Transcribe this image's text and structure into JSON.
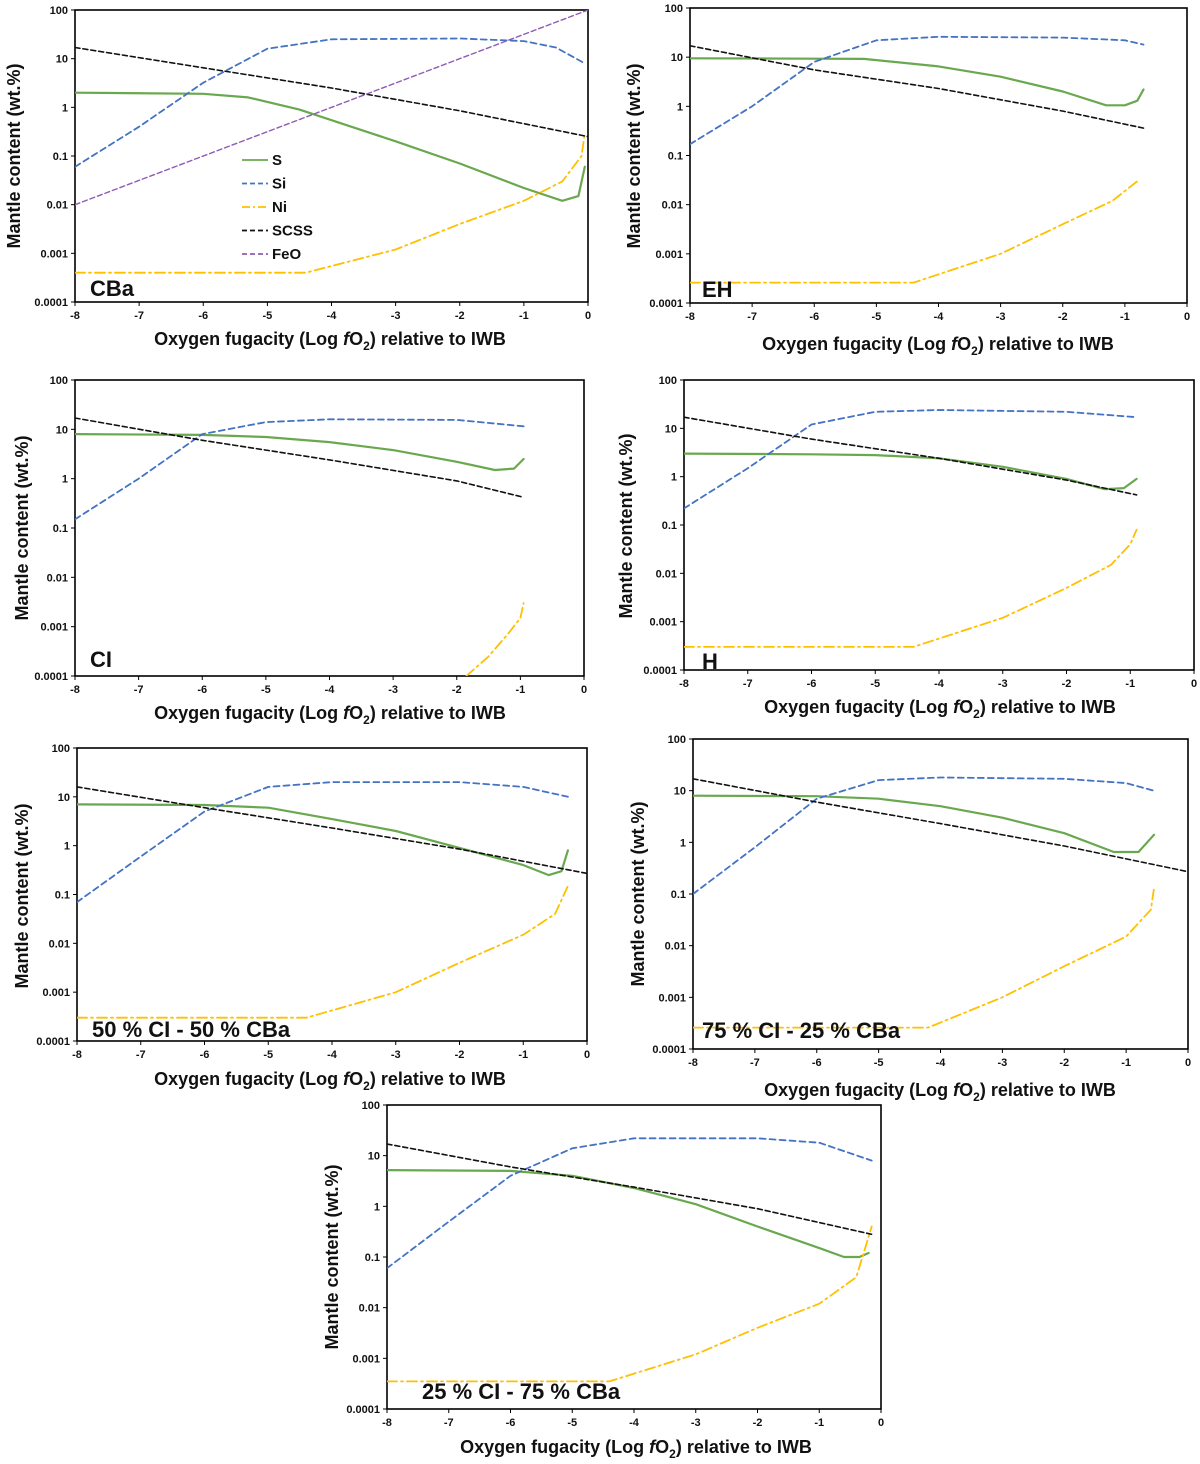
{
  "figure": {
    "axis_x_label_prefix": "Oxygen fugacity (Log ",
    "axis_x_label_f": "f",
    "axis_x_label_o": "O",
    "axis_x_label_sub": "2",
    "axis_x_label_suffix": ") relative to IWB",
    "axis_y_label": "Mantle content (wt.%)",
    "y_tick_labels": [
      "0.0001",
      "0.001",
      "0.01",
      "0.1",
      "1",
      "10",
      "100"
    ],
    "x_tick_labels": [
      "-8",
      "-7",
      "-6",
      "-5",
      "-4",
      "-3",
      "-2",
      "-1",
      "0"
    ]
  },
  "legend": [
    {
      "name": "S",
      "color": "#6aa84f",
      "dash": "solid"
    },
    {
      "name": "Si",
      "color": "#4472c4",
      "dash": "dash"
    },
    {
      "name": "Ni",
      "color": "#ffc000",
      "dash": "dashdot"
    },
    {
      "name": "SCSS",
      "color": "#111111",
      "dash": "dash"
    },
    {
      "name": "FeO",
      "color": "#8e5bb5",
      "dash": "dash"
    }
  ],
  "chart_data": [
    {
      "type": "line",
      "title": "CBa",
      "xlabel": "Oxygen fugacity (Log fO2) relative to IWB",
      "ylabel": "Mantle content (wt.%)",
      "xlim": [
        -8,
        0
      ],
      "ylim": [
        0.0001,
        100
      ],
      "yscale": "log",
      "series": [
        {
          "name": "S",
          "points": [
            [
              -8,
              2
            ],
            [
              -6,
              1.9
            ],
            [
              -5.3,
              1.6
            ],
            [
              -4.5,
              0.9
            ],
            [
              -3,
              0.2
            ],
            [
              -2,
              0.07
            ],
            [
              -1,
              0.022
            ],
            [
              -0.4,
              0.012
            ],
            [
              -0.15,
              0.015
            ],
            [
              -0.05,
              0.06
            ]
          ]
        },
        {
          "name": "Si",
          "points": [
            [
              -8,
              0.06
            ],
            [
              -7,
              0.4
            ],
            [
              -6,
              3.2
            ],
            [
              -5,
              16
            ],
            [
              -4,
              25
            ],
            [
              -2,
              26
            ],
            [
              -1,
              23
            ],
            [
              -0.5,
              17
            ],
            [
              -0.05,
              8
            ]
          ]
        },
        {
          "name": "Ni",
          "points": [
            [
              -8,
              0.0004
            ],
            [
              -4.4,
              0.0004
            ],
            [
              -3,
              0.0012
            ],
            [
              -2,
              0.004
            ],
            [
              -1,
              0.012
            ],
            [
              -0.4,
              0.03
            ],
            [
              -0.1,
              0.1
            ],
            [
              -0.05,
              0.3
            ]
          ]
        },
        {
          "name": "SCSS",
          "points": [
            [
              -8,
              17
            ],
            [
              -6,
              6.5
            ],
            [
              -4,
              2.5
            ],
            [
              -2,
              0.85
            ],
            [
              0,
              0.25
            ]
          ]
        },
        {
          "name": "FeO",
          "points": [
            [
              -8,
              0.01
            ],
            [
              0,
              100
            ]
          ]
        }
      ]
    },
    {
      "type": "line",
      "title": "EH",
      "xlabel": "Oxygen fugacity (Log fO2) relative to IWB",
      "ylabel": "Mantle content (wt.%)",
      "xlim": [
        -8,
        0
      ],
      "ylim": [
        0.0001,
        100
      ],
      "yscale": "log",
      "series": [
        {
          "name": "S",
          "points": [
            [
              -8,
              9.5
            ],
            [
              -6,
              9.3
            ],
            [
              -5.2,
              9.2
            ],
            [
              -4,
              6.5
            ],
            [
              -3,
              4
            ],
            [
              -2,
              2
            ],
            [
              -1.3,
              1.05
            ],
            [
              -1,
              1.05
            ],
            [
              -0.8,
              1.3
            ],
            [
              -0.7,
              2.2
            ]
          ]
        },
        {
          "name": "Si",
          "points": [
            [
              -8,
              0.17
            ],
            [
              -7,
              1
            ],
            [
              -6,
              8
            ],
            [
              -5,
              22
            ],
            [
              -4,
              26
            ],
            [
              -2,
              25
            ],
            [
              -1,
              22
            ],
            [
              -0.7,
              18
            ]
          ]
        },
        {
          "name": "Ni",
          "points": [
            [
              -8,
              0.00026
            ],
            [
              -4.4,
              0.00026
            ],
            [
              -3,
              0.001
            ],
            [
              -2,
              0.004
            ],
            [
              -1.2,
              0.012
            ],
            [
              -0.8,
              0.03
            ]
          ]
        },
        {
          "name": "SCSS",
          "points": [
            [
              -8,
              17
            ],
            [
              -6,
              5.5
            ],
            [
              -4,
              2.3
            ],
            [
              -2,
              0.8
            ],
            [
              -0.7,
              0.36
            ]
          ]
        }
      ]
    },
    {
      "type": "line",
      "title": "CI",
      "xlabel": "Oxygen fugacity (Log fO2) relative to IWB",
      "ylabel": "Mantle content (wt.%)",
      "xlim": [
        -8,
        0
      ],
      "ylim": [
        0.0001,
        100
      ],
      "yscale": "log",
      "series": [
        {
          "name": "S",
          "points": [
            [
              -8,
              8
            ],
            [
              -6,
              7.7
            ],
            [
              -5,
              7
            ],
            [
              -4,
              5.5
            ],
            [
              -3,
              3.8
            ],
            [
              -2,
              2.2
            ],
            [
              -1.4,
              1.5
            ],
            [
              -1.1,
              1.6
            ],
            [
              -0.95,
              2.5
            ]
          ]
        },
        {
          "name": "Si",
          "points": [
            [
              -8,
              0.15
            ],
            [
              -7,
              1
            ],
            [
              -6,
              8
            ],
            [
              -5,
              14
            ],
            [
              -4,
              16
            ],
            [
              -2,
              15.5
            ],
            [
              -0.95,
              11.5
            ]
          ]
        },
        {
          "name": "Ni",
          "points": [
            [
              -1.85,
              0.0001
            ],
            [
              -1.5,
              0.00025
            ],
            [
              -1.2,
              0.0007
            ],
            [
              -1,
              0.0015
            ],
            [
              -0.95,
              0.003
            ]
          ]
        },
        {
          "name": "SCSS",
          "points": [
            [
              -8,
              17
            ],
            [
              -6,
              6
            ],
            [
              -4,
              2.4
            ],
            [
              -2,
              0.9
            ],
            [
              -0.95,
              0.42
            ]
          ]
        }
      ]
    },
    {
      "type": "line",
      "title": "H",
      "xlabel": "Oxygen fugacity (Log fO2) relative to IWB",
      "ylabel": "Mantle content (wt.%)",
      "xlim": [
        -8,
        0
      ],
      "ylim": [
        0.0001,
        100
      ],
      "yscale": "log",
      "series": [
        {
          "name": "S",
          "points": [
            [
              -8,
              3
            ],
            [
              -6,
              2.9
            ],
            [
              -5,
              2.8
            ],
            [
              -4,
              2.4
            ],
            [
              -3,
              1.6
            ],
            [
              -2,
              0.9
            ],
            [
              -1.4,
              0.55
            ],
            [
              -1.1,
              0.58
            ],
            [
              -0.9,
              0.9
            ]
          ]
        },
        {
          "name": "Si",
          "points": [
            [
              -8,
              0.22
            ],
            [
              -7,
              1.5
            ],
            [
              -6,
              12
            ],
            [
              -5,
              22
            ],
            [
              -4,
              24
            ],
            [
              -2,
              22
            ],
            [
              -0.9,
              17
            ]
          ]
        },
        {
          "name": "Ni",
          "points": [
            [
              -8,
              0.0003
            ],
            [
              -4.4,
              0.0003
            ],
            [
              -3,
              0.0012
            ],
            [
              -2,
              0.005
            ],
            [
              -1.3,
              0.015
            ],
            [
              -1,
              0.04
            ],
            [
              -0.9,
              0.08
            ]
          ]
        },
        {
          "name": "SCSS",
          "points": [
            [
              -8,
              17
            ],
            [
              -6,
              6
            ],
            [
              -4,
              2.4
            ],
            [
              -2,
              0.85
            ],
            [
              -0.9,
              0.42
            ]
          ]
        }
      ]
    },
    {
      "type": "line",
      "title": "50 % CI - 50 % CBa",
      "xlabel": "Oxygen fugacity (Log fO2) relative to IWB",
      "ylabel": "Mantle content (wt.%)",
      "xlim": [
        -8,
        0
      ],
      "ylim": [
        0.0001,
        100
      ],
      "yscale": "log",
      "series": [
        {
          "name": "S",
          "points": [
            [
              -8,
              7
            ],
            [
              -6,
              6.8
            ],
            [
              -5,
              6
            ],
            [
              -4,
              3.5
            ],
            [
              -3,
              2
            ],
            [
              -2,
              0.9
            ],
            [
              -1,
              0.4
            ],
            [
              -0.6,
              0.25
            ],
            [
              -0.4,
              0.3
            ],
            [
              -0.3,
              0.8
            ]
          ]
        },
        {
          "name": "Si",
          "points": [
            [
              -8,
              0.07
            ],
            [
              -7,
              0.6
            ],
            [
              -6,
              5
            ],
            [
              -5,
              16
            ],
            [
              -4,
              20
            ],
            [
              -2,
              20
            ],
            [
              -1,
              16
            ],
            [
              -0.3,
              10
            ]
          ]
        },
        {
          "name": "Ni",
          "points": [
            [
              -8,
              0.0003
            ],
            [
              -4.4,
              0.0003
            ],
            [
              -3,
              0.001
            ],
            [
              -2,
              0.004
            ],
            [
              -1,
              0.015
            ],
            [
              -0.5,
              0.04
            ],
            [
              -0.3,
              0.15
            ]
          ]
        },
        {
          "name": "SCSS",
          "points": [
            [
              -8,
              16
            ],
            [
              -6,
              6
            ],
            [
              -4,
              2.3
            ],
            [
              -2,
              0.85
            ],
            [
              0,
              0.27
            ]
          ]
        }
      ]
    },
    {
      "type": "line",
      "title": "75 % CI - 25 % CBa",
      "xlabel": "Oxygen fugacity (Log fO2) relative to IWB",
      "ylabel": "Mantle content (wt.%)",
      "xlim": [
        -8,
        0
      ],
      "ylim": [
        0.0001,
        100
      ],
      "yscale": "log",
      "series": [
        {
          "name": "S",
          "points": [
            [
              -8,
              8
            ],
            [
              -6,
              7.8
            ],
            [
              -5,
              7
            ],
            [
              -4,
              5
            ],
            [
              -3,
              3
            ],
            [
              -2,
              1.5
            ],
            [
              -1.2,
              0.65
            ],
            [
              -0.8,
              0.65
            ],
            [
              -0.55,
              1.4
            ]
          ]
        },
        {
          "name": "Si",
          "points": [
            [
              -8,
              0.1
            ],
            [
              -7,
              0.8
            ],
            [
              -6,
              7
            ],
            [
              -5,
              16
            ],
            [
              -4,
              18
            ],
            [
              -2,
              17
            ],
            [
              -1,
              14
            ],
            [
              -0.55,
              10
            ]
          ]
        },
        {
          "name": "Ni",
          "points": [
            [
              -8,
              0.00026
            ],
            [
              -4.2,
              0.00026
            ],
            [
              -3,
              0.001
            ],
            [
              -2,
              0.004
            ],
            [
              -1,
              0.015
            ],
            [
              -0.6,
              0.05
            ],
            [
              -0.55,
              0.13
            ]
          ]
        },
        {
          "name": "SCSS",
          "points": [
            [
              -8,
              17
            ],
            [
              -6,
              6
            ],
            [
              -4,
              2.3
            ],
            [
              -2,
              0.85
            ],
            [
              0,
              0.27
            ]
          ]
        }
      ]
    },
    {
      "type": "line",
      "title": "25 % CI - 75 % CBa",
      "xlabel": "Oxygen fugacity (Log fO2) relative to IWB",
      "ylabel": "Mantle content (wt.%)",
      "xlim": [
        -8,
        0
      ],
      "ylim": [
        0.0001,
        100
      ],
      "yscale": "log",
      "series": [
        {
          "name": "S",
          "points": [
            [
              -8,
              5.2
            ],
            [
              -6,
              5
            ],
            [
              -5,
              4
            ],
            [
              -4,
              2.3
            ],
            [
              -3,
              1.1
            ],
            [
              -2,
              0.4
            ],
            [
              -1,
              0.15
            ],
            [
              -0.6,
              0.1
            ],
            [
              -0.35,
              0.1
            ],
            [
              -0.2,
              0.12
            ]
          ]
        },
        {
          "name": "Si",
          "points": [
            [
              -8,
              0.06
            ],
            [
              -7,
              0.5
            ],
            [
              -6,
              4
            ],
            [
              -5,
              14
            ],
            [
              -4,
              22
            ],
            [
              -2,
              22
            ],
            [
              -1,
              18
            ],
            [
              -0.15,
              8
            ]
          ]
        },
        {
          "name": "Ni",
          "points": [
            [
              -8,
              0.00035
            ],
            [
              -4.4,
              0.00035
            ],
            [
              -3,
              0.0012
            ],
            [
              -2,
              0.004
            ],
            [
              -1,
              0.012
            ],
            [
              -0.4,
              0.04
            ],
            [
              -0.15,
              0.4
            ]
          ]
        },
        {
          "name": "SCSS",
          "points": [
            [
              -8,
              17
            ],
            [
              -6,
              6
            ],
            [
              -4,
              2.4
            ],
            [
              -2,
              0.9
            ],
            [
              -0.15,
              0.28
            ]
          ]
        }
      ]
    }
  ]
}
